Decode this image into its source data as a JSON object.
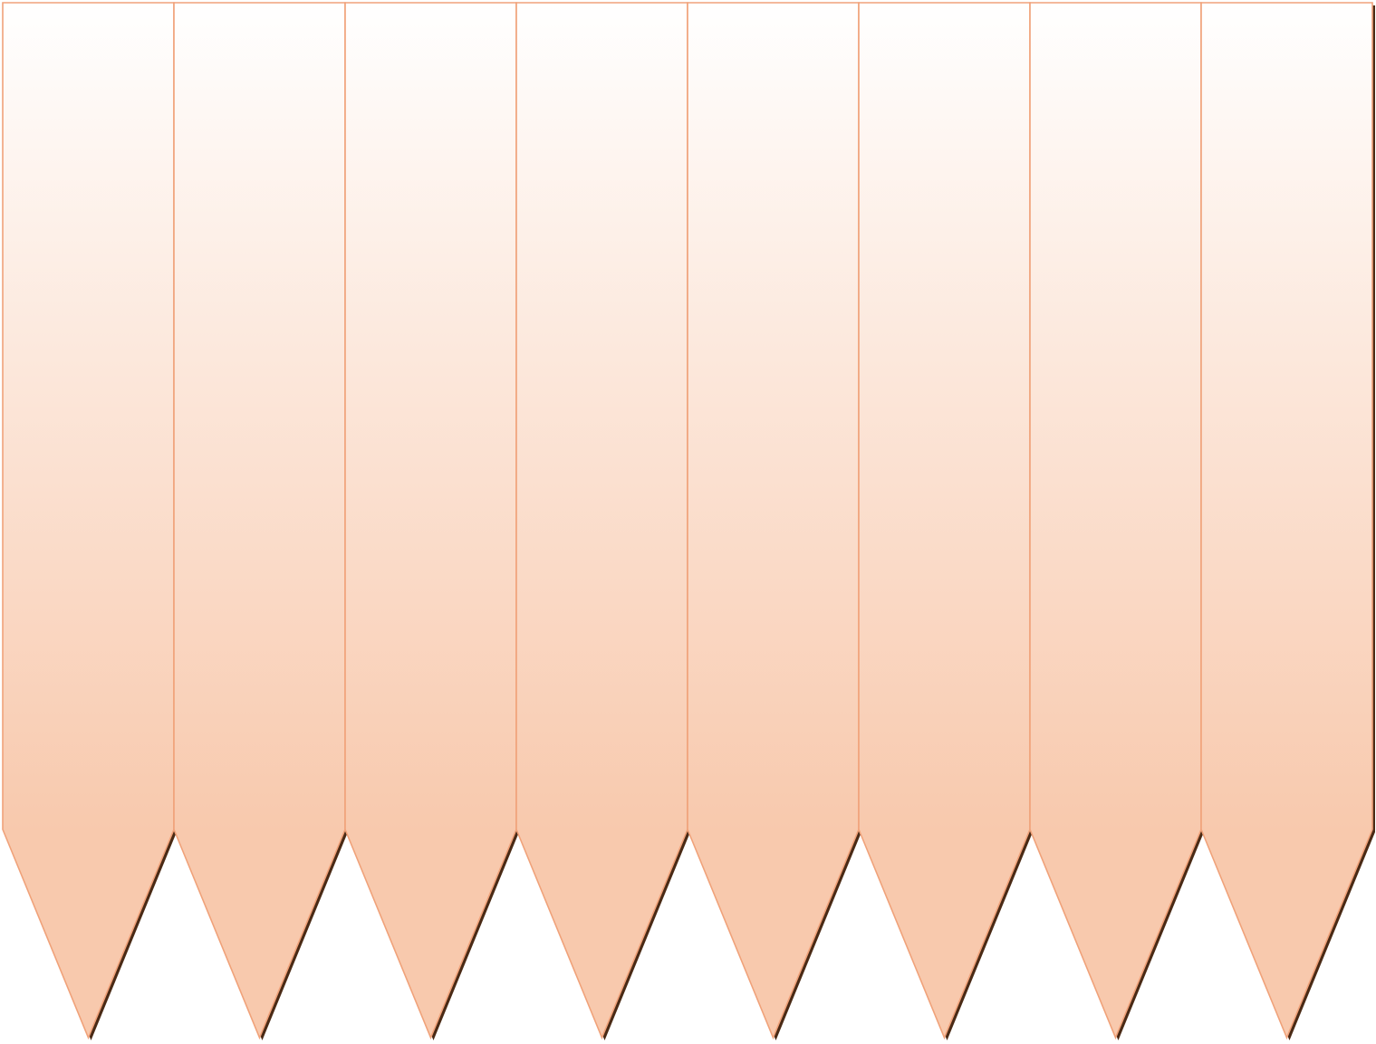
{
  "diagram": {
    "shape": "pennant-strip",
    "pennant_count": 8,
    "labels": [],
    "colors": {
      "fill_top": "#ffffff",
      "fill_bottom": "#f8c9ad",
      "stroke": "#f0a27a",
      "shadow": "#4a2a15"
    }
  }
}
